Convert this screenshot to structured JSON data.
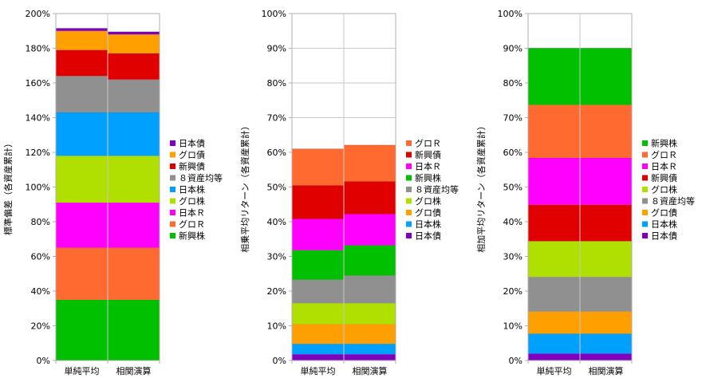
{
  "categories": [
    "単純平均",
    "相関演算"
  ],
  "chart_data": [
    {
      "type": "bar",
      "stacked": true,
      "ylabel": "標準偏差（各資産累計）",
      "ylim": [
        0,
        200
      ],
      "yticks": [
        0,
        20,
        40,
        60,
        80,
        100,
        120,
        140,
        160,
        180,
        200
      ],
      "tick_suffix": "%",
      "categories": [
        "単純平均",
        "相関演算"
      ],
      "series": [
        {
          "name": "新興株",
          "color": "#00c000",
          "values": [
            35,
            35
          ]
        },
        {
          "name": "グロＲ",
          "color": "#ff6a30",
          "values": [
            30,
            30
          ]
        },
        {
          "name": "日本Ｒ",
          "color": "#ff00ff",
          "values": [
            26,
            26
          ]
        },
        {
          "name": "グロ株",
          "color": "#b0e000",
          "values": [
            27,
            27
          ]
        },
        {
          "name": "日本株",
          "color": "#00a0ff",
          "values": [
            25,
            25
          ]
        },
        {
          "name": "８資産均等",
          "color": "#909090",
          "values": [
            21,
            19
          ]
        },
        {
          "name": "新興債",
          "color": "#e00000",
          "values": [
            15,
            15
          ]
        },
        {
          "name": "グロ債",
          "color": "#ffa000",
          "values": [
            11,
            11
          ]
        },
        {
          "name": "日本債",
          "color": "#8000c0",
          "values": [
            1.5,
            1.5
          ]
        }
      ],
      "legend": [
        "日本債",
        "グロ債",
        "新興債",
        "８資産均等",
        "日本株",
        "グロ株",
        "日本Ｒ",
        "グロＲ",
        "新興株"
      ]
    },
    {
      "type": "bar",
      "stacked": true,
      "ylabel": "相乗平均リターン（各資産累計）",
      "ylim": [
        0,
        100
      ],
      "yticks": [
        0,
        10,
        20,
        30,
        40,
        50,
        60,
        70,
        80,
        90,
        100
      ],
      "tick_suffix": "%",
      "categories": [
        "単純平均",
        "相関演算"
      ],
      "series": [
        {
          "name": "日本債",
          "color": "#8000c0",
          "values": [
            1.8,
            1.8
          ]
        },
        {
          "name": "日本株",
          "color": "#00a0ff",
          "values": [
            3,
            3
          ]
        },
        {
          "name": "グロ債",
          "color": "#ffa000",
          "values": [
            5.7,
            5.7
          ]
        },
        {
          "name": "グロ株",
          "color": "#b0e000",
          "values": [
            6,
            6
          ]
        },
        {
          "name": "８資産均等",
          "color": "#909090",
          "values": [
            6.8,
            8
          ]
        },
        {
          "name": "新興株",
          "color": "#00c000",
          "values": [
            8.5,
            8.7
          ]
        },
        {
          "name": "日本Ｒ",
          "color": "#ff00ff",
          "values": [
            9,
            9
          ]
        },
        {
          "name": "新興債",
          "color": "#e00000",
          "values": [
            9.7,
            9.4
          ]
        },
        {
          "name": "グロＲ",
          "color": "#ff6a30",
          "values": [
            10.5,
            10.5
          ]
        }
      ],
      "legend": [
        "グロＲ",
        "新興債",
        "日本Ｒ",
        "新興株",
        "８資産均等",
        "グロ株",
        "グロ債",
        "日本株",
        "日本債"
      ]
    },
    {
      "type": "bar",
      "stacked": true,
      "ylabel": "相加平均リターン（各資産累計）",
      "ylim": [
        0,
        100
      ],
      "yticks": [
        0,
        10,
        20,
        30,
        40,
        50,
        60,
        70,
        80,
        90,
        100
      ],
      "tick_suffix": "%",
      "categories": [
        "単純平均",
        "相関演算"
      ],
      "series": [
        {
          "name": "日本債",
          "color": "#8000c0",
          "values": [
            2,
            2
          ]
        },
        {
          "name": "日本株",
          "color": "#00a0ff",
          "values": [
            5.7,
            5.7
          ]
        },
        {
          "name": "グロ債",
          "color": "#ffa000",
          "values": [
            6.4,
            6.4
          ]
        },
        {
          "name": "８資産均等",
          "color": "#909090",
          "values": [
            10,
            10
          ]
        },
        {
          "name": "グロ株",
          "color": "#b0e000",
          "values": [
            10.3,
            10.3
          ]
        },
        {
          "name": "新興債",
          "color": "#e00000",
          "values": [
            10.5,
            10.5
          ]
        },
        {
          "name": "日本Ｒ",
          "color": "#ff00ff",
          "values": [
            13.5,
            13.5
          ]
        },
        {
          "name": "グロＲ",
          "color": "#ff6a30",
          "values": [
            15.3,
            15.3
          ]
        },
        {
          "name": "新興株",
          "color": "#00c000",
          "values": [
            16.3,
            16.3
          ]
        }
      ],
      "legend": [
        "新興株",
        "グロＲ",
        "日本Ｒ",
        "新興債",
        "グロ株",
        "８資産均等",
        "グロ債",
        "日本株",
        "日本債"
      ]
    }
  ]
}
